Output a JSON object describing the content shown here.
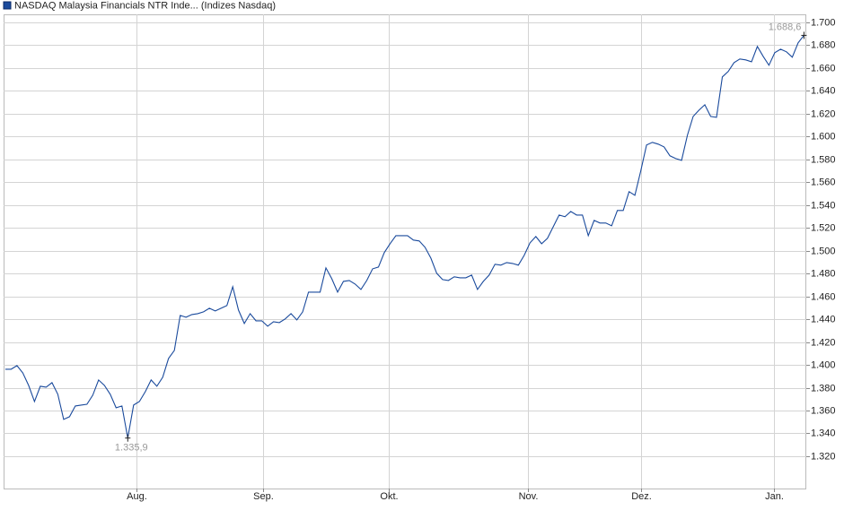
{
  "chart_data": {
    "type": "line",
    "series": [
      {
        "name": "NASDAQ Malaysia Financials NTR Inde... (Indizes Nasdaq)",
        "color": "#1a4a9c",
        "values": [
          1396.2,
          1396.2,
          1399.3,
          1393.0,
          1382.0,
          1367.9,
          1381.3,
          1380.5,
          1384.4,
          1374.2,
          1352.2,
          1354.6,
          1364.0,
          1364.8,
          1365.5,
          1373.4,
          1386.8,
          1382.0,
          1374.2,
          1362.4,
          1364.0,
          1335.9,
          1364.8,
          1367.9,
          1376.5,
          1386.8,
          1381.3,
          1389.1,
          1405.6,
          1412.7,
          1443.3,
          1441.7,
          1444.1,
          1444.9,
          1446.4,
          1449.6,
          1447.2,
          1449.6,
          1451.9,
          1468.4,
          1448.0,
          1436.2,
          1444.9,
          1438.6,
          1438.6,
          1433.9,
          1437.8,
          1437.0,
          1440.2,
          1444.9,
          1439.4,
          1446.4,
          1463.7,
          1463.7,
          1463.7,
          1484.9,
          1475.5,
          1463.7,
          1473.1,
          1473.9,
          1470.8,
          1466.1,
          1473.9,
          1484.1,
          1485.7,
          1498.3,
          1506.1,
          1513.2,
          1513.2,
          1513.2,
          1509.3,
          1508.5,
          1503.0,
          1493.5,
          1480.2,
          1474.7,
          1473.9,
          1477.1,
          1476.3,
          1476.3,
          1478.6,
          1466.1,
          1473.1,
          1478.6,
          1488.1,
          1487.3,
          1489.6,
          1488.8,
          1487.3,
          1495.9,
          1506.9,
          1512.4,
          1506.1,
          1510.8,
          1521.0,
          1531.2,
          1529.7,
          1534.4,
          1531.2,
          1531.2,
          1513.2,
          1526.5,
          1524.2,
          1524.2,
          1521.8,
          1535.2,
          1535.2,
          1551.7,
          1548.5,
          1569.7,
          1592.5,
          1594.9,
          1593.3,
          1590.9,
          1583.1,
          1580.7,
          1579.1,
          1601.1,
          1617.6,
          1623.1,
          1627.8,
          1617.6,
          1616.8,
          1652.2,
          1656.9,
          1664.7,
          1667.9,
          1667.1,
          1665.5,
          1678.9,
          1670.2,
          1662.4,
          1673.4,
          1676.5,
          1674.2,
          1669.5,
          1682.0,
          1688.6
        ]
      }
    ],
    "annotations": [
      {
        "text": "1.335,9",
        "x": 21,
        "value": 1335.9,
        "position": "below"
      },
      {
        "text": "1.688,6",
        "x": 137,
        "value": 1688.6,
        "position": "above"
      }
    ],
    "xlim": [
      -0.3,
      137.4
    ],
    "xticks": [
      {
        "value": 22.5,
        "label": "Aug."
      },
      {
        "value": 44.2,
        "label": "Sep."
      },
      {
        "value": 65.8,
        "label": "Okt."
      },
      {
        "value": 89.7,
        "label": "Nov."
      },
      {
        "value": 109.1,
        "label": "Dez."
      },
      {
        "value": 131.9,
        "label": "Jan."
      }
    ],
    "ylim": [
      1291.7,
      1707
    ],
    "yticks": [
      {
        "value": 1320,
        "label": "1.320"
      },
      {
        "value": 1340,
        "label": "1.340"
      },
      {
        "value": 1360,
        "label": "1.360"
      },
      {
        "value": 1380,
        "label": "1.380"
      },
      {
        "value": 1400,
        "label": "1.400"
      },
      {
        "value": 1420,
        "label": "1.420"
      },
      {
        "value": 1440,
        "label": "1.440"
      },
      {
        "value": 1460,
        "label": "1.460"
      },
      {
        "value": 1480,
        "label": "1.480"
      },
      {
        "value": 1500,
        "label": "1.500"
      },
      {
        "value": 1520,
        "label": "1.520"
      },
      {
        "value": 1540,
        "label": "1.540"
      },
      {
        "value": 1560,
        "label": "1.560"
      },
      {
        "value": 1580,
        "label": "1.580"
      },
      {
        "value": 1600,
        "label": "1.600"
      },
      {
        "value": 1620,
        "label": "1.620"
      },
      {
        "value": 1640,
        "label": "1.640"
      },
      {
        "value": 1660,
        "label": "1.660"
      },
      {
        "value": 1680,
        "label": "1.680"
      },
      {
        "value": 1700,
        "label": "1.700"
      }
    ],
    "grid": true
  }
}
